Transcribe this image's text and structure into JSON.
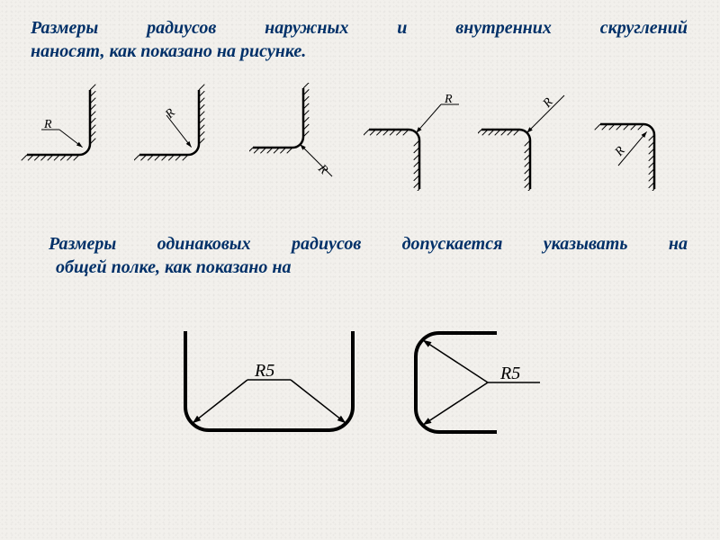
{
  "paragraph1": {
    "line1_words": [
      "Размеры",
      "радиусов",
      "наружных",
      "и",
      "внутренних",
      "скруглений"
    ],
    "line2": "наносят, как показано на рисунке."
  },
  "paragraph2": {
    "line1_words": [
      "    Размеры",
      "одинаковых",
      "радиусов",
      "допускается",
      "указывать",
      "на"
    ],
    "line2": "общей полке, как показано на"
  },
  "labels": {
    "R": "R",
    "R5": "R5"
  },
  "colors": {
    "line": "#000000",
    "thin": "#000000",
    "textLabel": "#000000"
  },
  "style": {
    "thickStroke": 2.5,
    "thinStroke": 1,
    "hatchSpacing": 7,
    "radiusSmall": 12,
    "labelFontSize": 14,
    "labelFontFamily": "cursive",
    "bigStroke": 4,
    "bigRadius": 26,
    "bigLabelFontSize": 20
  }
}
